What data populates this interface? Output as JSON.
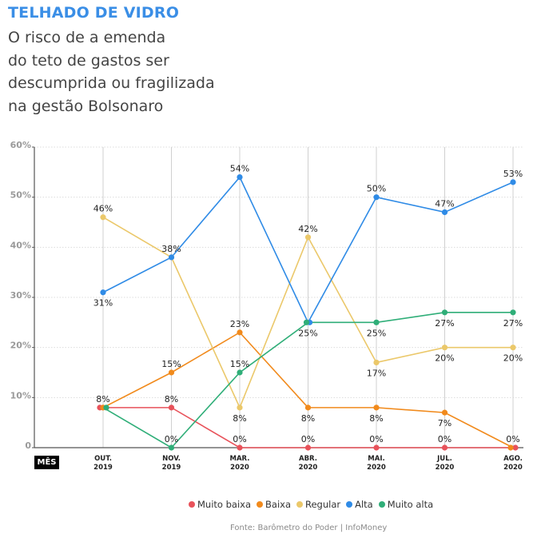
{
  "header": {
    "kicker": "TELHADO DE VIDRO",
    "headline_lines": [
      "O risco de a emenda",
      "do teto de gastos ser",
      "descumprida ou fragilizada",
      "na gestão Bolsonaro"
    ]
  },
  "x_axis_tag": "MÊS",
  "source": "Fonte: Barômetro do Poder | InfoMoney",
  "chart_data": {
    "type": "line",
    "title": "O risco de a emenda do teto de gastos ser descumprida ou fragilizada na gestão Bolsonaro",
    "xlabel": "MÊS",
    "ylabel": "",
    "ylim": [
      0,
      60
    ],
    "yticks": [
      0,
      10,
      20,
      30,
      40,
      50,
      60
    ],
    "ytick_labels": [
      "0",
      "10%",
      "20%",
      "30%",
      "40%",
      "50%",
      "60%"
    ],
    "grid": true,
    "legend_position": "bottom",
    "categories": [
      {
        "month": "OUT.",
        "year": "2019"
      },
      {
        "month": "NOV.",
        "year": "2019"
      },
      {
        "month": "MAR.",
        "year": "2020"
      },
      {
        "month": "ABR.",
        "year": "2020"
      },
      {
        "month": "MAI.",
        "year": "2020"
      },
      {
        "month": "JUL.",
        "year": "2020"
      },
      {
        "month": "AGO.",
        "year": "2020"
      }
    ],
    "series": [
      {
        "name": "Muito baixa",
        "color": "#e8525a",
        "values": [
          8,
          8,
          0,
          0,
          0,
          0,
          0
        ],
        "labels": [
          "",
          "8%",
          "0%",
          "0%",
          "0%",
          "0%",
          "0%"
        ],
        "label_pos": [
          "",
          "above",
          "above",
          "above",
          "above",
          "above",
          "above"
        ]
      },
      {
        "name": "Baixa",
        "color": "#f18a1c",
        "values": [
          8,
          15,
          23,
          8,
          8,
          7,
          0
        ],
        "labels": [
          "8%",
          "15%",
          "23%",
          "8%",
          "8%",
          "7%",
          ""
        ],
        "label_pos": [
          "above",
          "above",
          "above",
          "below",
          "below",
          "below",
          ""
        ]
      },
      {
        "name": "Regular",
        "color": "#ebc86a",
        "values": [
          46,
          38,
          8,
          42,
          17,
          20,
          20
        ],
        "labels": [
          "46%",
          "",
          "8%",
          "42%",
          "17%",
          "20%",
          "20%"
        ],
        "label_pos": [
          "above",
          "",
          "below",
          "above",
          "below",
          "below",
          "below"
        ]
      },
      {
        "name": "Alta",
        "color": "#2f8be6",
        "values": [
          31,
          38,
          54,
          25,
          50,
          47,
          53
        ],
        "labels": [
          "31%",
          "38%",
          "54%",
          "",
          "50%",
          "47%",
          "53%"
        ],
        "label_pos": [
          "below",
          "above",
          "above",
          "",
          "above",
          "above",
          "above"
        ]
      },
      {
        "name": "Muito alta",
        "color": "#2fae78",
        "values": [
          8,
          0,
          15,
          25,
          25,
          27,
          27
        ],
        "labels": [
          "",
          "0%",
          "15%",
          "25%",
          "25%",
          "27%",
          "27%"
        ],
        "label_pos": [
          "",
          "above",
          "above",
          "below",
          "below",
          "below",
          "below"
        ]
      }
    ]
  }
}
